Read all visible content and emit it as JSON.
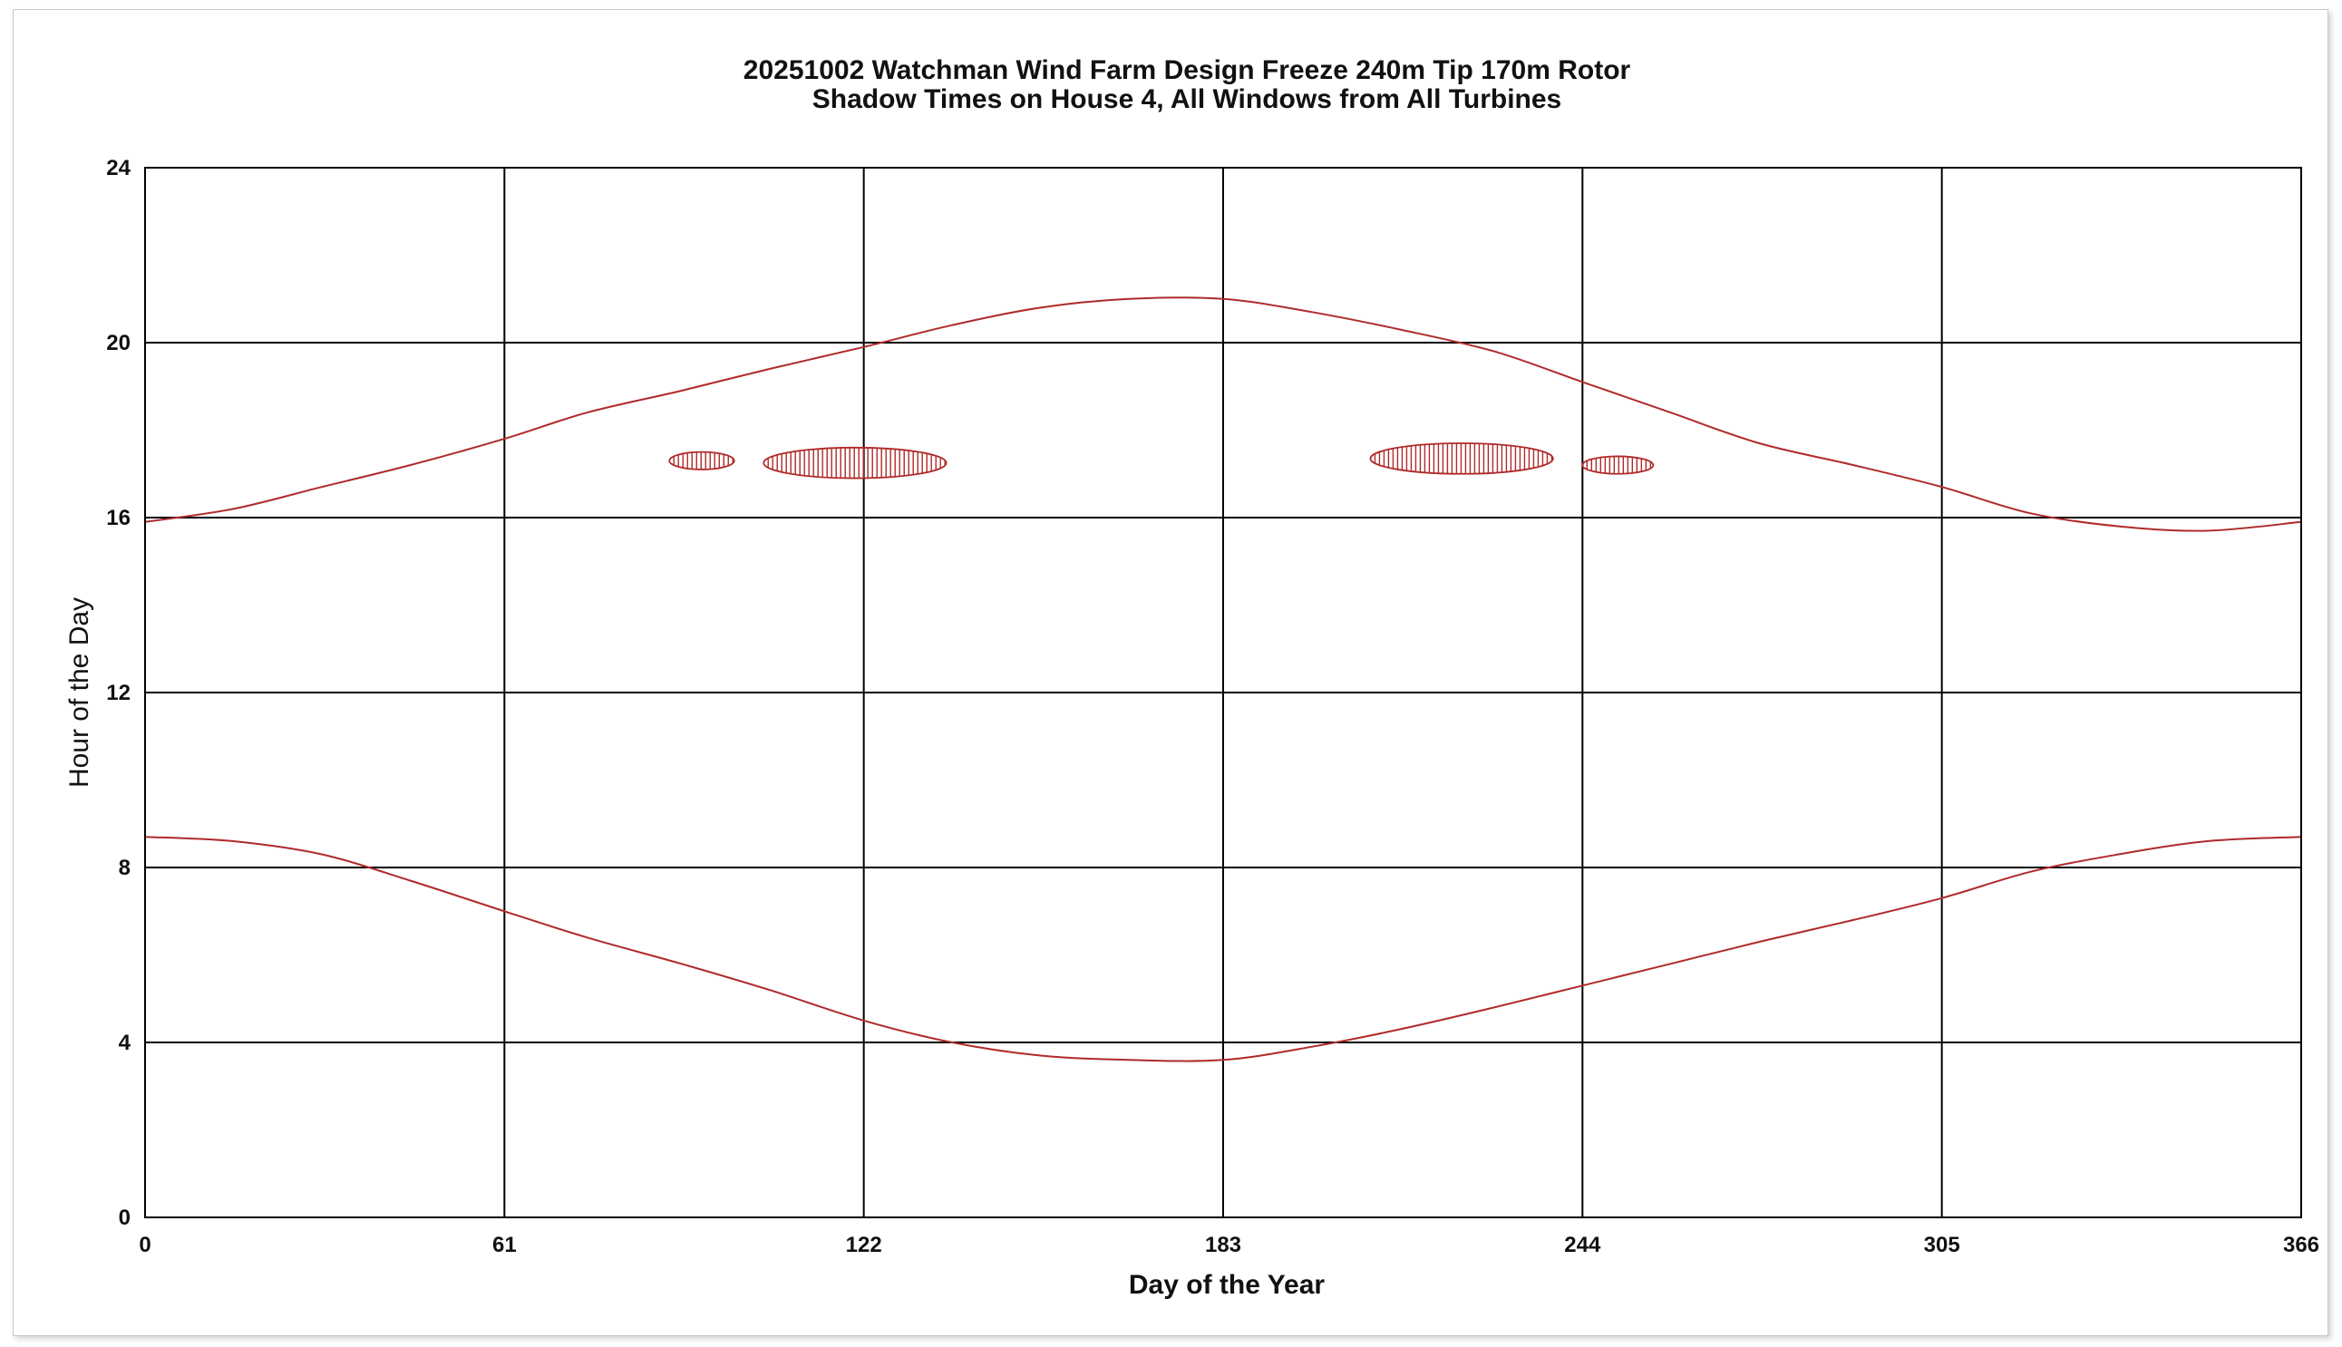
{
  "chart_data": {
    "type": "line",
    "title": "20251002 Watchman Wind Farm Design Freeze 240m Tip 170m Rotor",
    "subtitle": "Shadow Times on House 4, All Windows from All Turbines",
    "xlabel": "Day of the Year",
    "ylabel": "Hour of the Day",
    "xlim": [
      0,
      366
    ],
    "ylim": [
      0,
      24
    ],
    "x_ticks": [
      "0",
      "61",
      "122",
      "183",
      "244",
      "305",
      "366"
    ],
    "y_ticks": [
      "0",
      "4",
      "8",
      "12",
      "16",
      "20",
      "24"
    ],
    "grid": true,
    "color": "#b02a2a",
    "series": [
      {
        "role": "sunset",
        "points": [
          [
            0,
            15.9
          ],
          [
            15,
            16.2
          ],
          [
            30,
            16.7
          ],
          [
            45,
            17.2
          ],
          [
            61,
            17.8
          ],
          [
            75,
            18.4
          ],
          [
            91,
            18.9
          ],
          [
            106,
            19.4
          ],
          [
            122,
            19.9
          ],
          [
            137,
            20.4
          ],
          [
            152,
            20.8
          ],
          [
            167,
            21.0
          ],
          [
            183,
            21.0
          ],
          [
            198,
            20.7
          ],
          [
            213,
            20.3
          ],
          [
            229,
            19.8
          ],
          [
            244,
            19.1
          ],
          [
            259,
            18.4
          ],
          [
            274,
            17.7
          ],
          [
            290,
            17.2
          ],
          [
            305,
            16.7
          ],
          [
            320,
            16.1
          ],
          [
            335,
            15.8
          ],
          [
            350,
            15.7
          ],
          [
            366,
            15.9
          ]
        ]
      },
      {
        "role": "sunrise",
        "points": [
          [
            0,
            8.7
          ],
          [
            15,
            8.6
          ],
          [
            30,
            8.3
          ],
          [
            45,
            7.7
          ],
          [
            61,
            7.0
          ],
          [
            75,
            6.4
          ],
          [
            91,
            5.8
          ],
          [
            106,
            5.2
          ],
          [
            122,
            4.5
          ],
          [
            137,
            4.0
          ],
          [
            152,
            3.7
          ],
          [
            167,
            3.6
          ],
          [
            183,
            3.6
          ],
          [
            198,
            3.9
          ],
          [
            213,
            4.3
          ],
          [
            229,
            4.8
          ],
          [
            244,
            5.3
          ],
          [
            259,
            5.8
          ],
          [
            274,
            6.3
          ],
          [
            290,
            6.8
          ],
          [
            305,
            7.3
          ],
          [
            320,
            7.9
          ],
          [
            335,
            8.3
          ],
          [
            350,
            8.6
          ],
          [
            366,
            8.7
          ]
        ]
      }
    ],
    "shadow_periods": [
      {
        "day_start": 89,
        "day_end": 100,
        "hour_low": 17.1,
        "hour_high": 17.5
      },
      {
        "day_start": 105,
        "day_end": 136,
        "hour_low": 16.9,
        "hour_high": 17.6
      },
      {
        "day_start": 208,
        "day_end": 239,
        "hour_low": 17.0,
        "hour_high": 17.7
      },
      {
        "day_start": 244,
        "day_end": 256,
        "hour_low": 17.0,
        "hour_high": 17.4
      }
    ]
  }
}
